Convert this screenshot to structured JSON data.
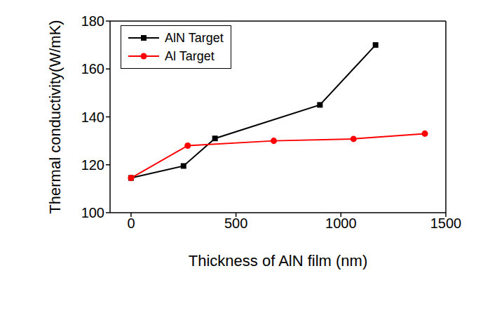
{
  "chart_data": {
    "type": "line",
    "x_label": "Thickness of AlN film (nm)",
    "y_label": "Thermal conductivity(W/mK)",
    "xlim": [
      -100,
      1500
    ],
    "xticks": [
      0,
      500,
      1000,
      1500
    ],
    "ylim": [
      100,
      180
    ],
    "yticks": [
      100,
      120,
      140,
      160,
      180
    ],
    "grid": false,
    "legend": "upper left",
    "series": [
      {
        "name": "AlN Target",
        "color": "#000000",
        "marker": "square",
        "line_style": "solid",
        "x": [
          0,
          250,
          400,
          900,
          1165
        ],
        "values": [
          114.5,
          119.5,
          131,
          145,
          170
        ]
      },
      {
        "name": "Al Target",
        "color": "#ff0000",
        "marker": "circle",
        "line_style": "solid",
        "x": [
          0,
          270,
          680,
          1060,
          1400
        ],
        "values": [
          114.5,
          128,
          130,
          130.8,
          133
        ]
      }
    ]
  }
}
